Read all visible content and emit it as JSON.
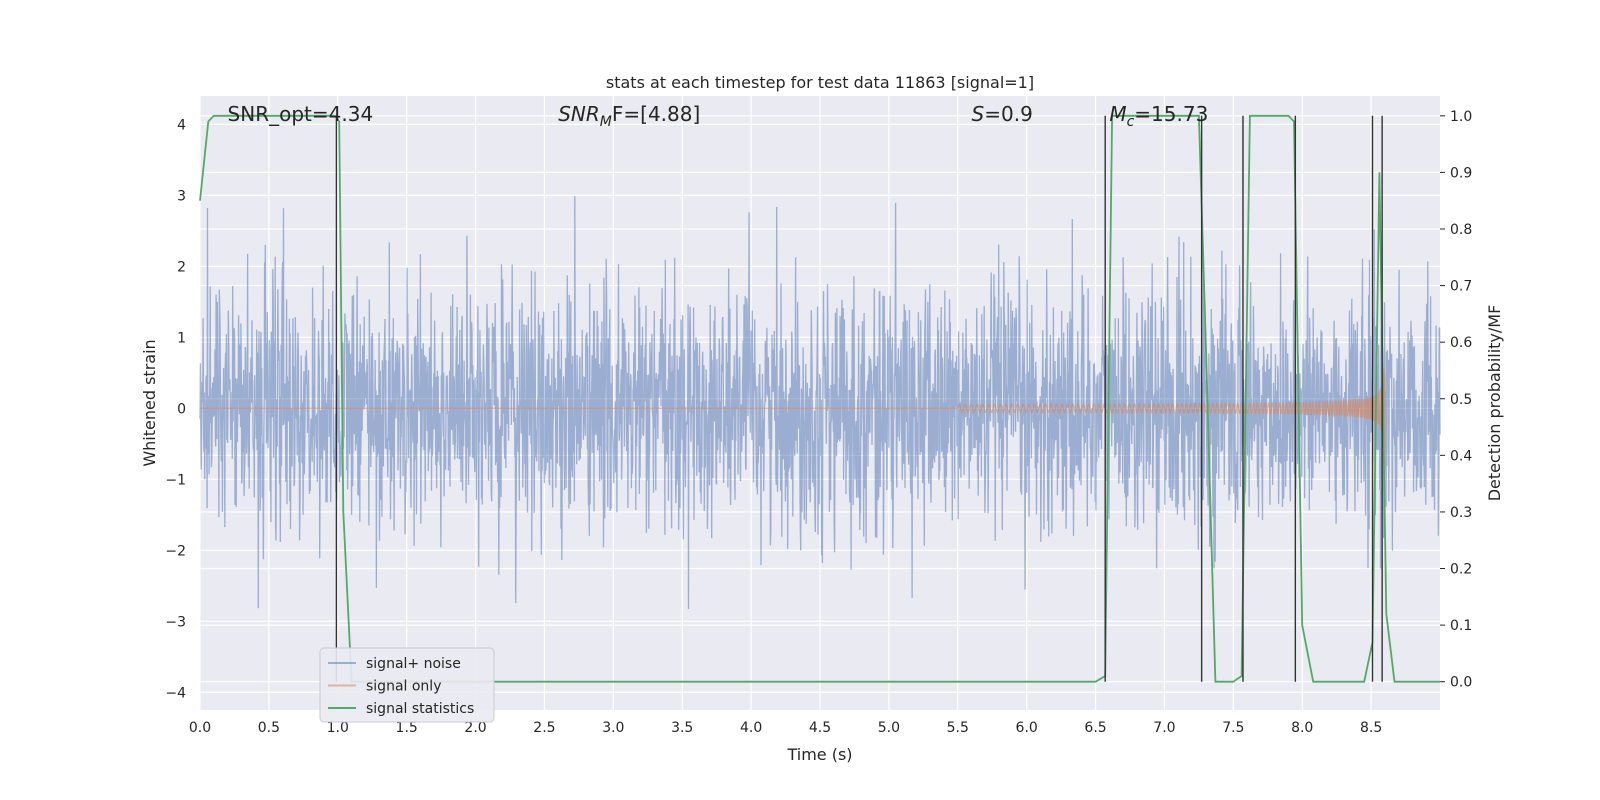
{
  "chart_data": {
    "type": "line",
    "title": "stats at each timestep for test data 11863 [signal=1]",
    "xlabel": "Time (s)",
    "ylabel": "Whitened strain",
    "ylabel_right": "Detection probability/MF",
    "xlim": [
      0.0,
      9.0
    ],
    "ylim": [
      -4.25,
      4.4
    ],
    "ylim_right": [
      -0.05,
      1.035
    ],
    "x_ticks": [
      "0.0",
      "0.5",
      "1.0",
      "1.5",
      "2.0",
      "2.5",
      "3.0",
      "3.5",
      "4.0",
      "4.5",
      "5.0",
      "5.5",
      "6.0",
      "6.5",
      "7.0",
      "7.5",
      "8.0",
      "8.5"
    ],
    "x_tick_values": [
      0.0,
      0.5,
      1.0,
      1.5,
      2.0,
      2.5,
      3.0,
      3.5,
      4.0,
      4.5,
      5.0,
      5.5,
      6.0,
      6.5,
      7.0,
      7.5,
      8.0,
      8.5
    ],
    "y_ticks": [
      "4",
      "3",
      "2",
      "1",
      "0",
      "−1",
      "−2",
      "−3",
      "−4"
    ],
    "y_tick_values": [
      4,
      3,
      2,
      1,
      0,
      -1,
      -2,
      -3,
      -4
    ],
    "y_ticks_right": [
      "1.0",
      "0.9",
      "0.8",
      "0.7",
      "0.6",
      "0.5",
      "0.4",
      "0.3",
      "0.2",
      "0.1",
      "0.0"
    ],
    "y_tick_values_right": [
      1.0,
      0.9,
      0.8,
      0.7,
      0.6,
      0.5,
      0.4,
      0.3,
      0.2,
      0.1,
      0.0
    ],
    "grid": true,
    "legend_position": "bottom-left",
    "annotations": [
      {
        "prefix": "SNR_opt=4.34",
        "sub": "",
        "suffix": "",
        "italic": false,
        "x": 0.2
      },
      {
        "prefix": "SNR",
        "sub": "M",
        "suffix": "F=[4.88]",
        "italic": true,
        "x": 2.6
      },
      {
        "prefix": "S",
        "sub": "",
        "suffix": "=0.9",
        "italic": true,
        "x": 5.6
      },
      {
        "prefix": "M",
        "sub": "c",
        "suffix": "=15.73",
        "italic": true,
        "x": 6.6
      }
    ],
    "series": [
      {
        "name": "signal+ noise",
        "color": "#4c72b0",
        "opacity": 0.5,
        "axis": "left",
        "style": "noise",
        "sigma": 0.85,
        "samples_per_second": 350
      },
      {
        "name": "signal only",
        "color": "#dd8452",
        "opacity": 0.55,
        "axis": "left",
        "style": "chirp",
        "start": 5.5,
        "merger": 8.6,
        "peak_amplitude": 0.85
      },
      {
        "name": "signal statistics",
        "color": "#55a868",
        "axis": "right",
        "style": "line",
        "x": [
          0.0,
          0.06,
          0.1,
          0.15,
          0.98,
          1.01,
          1.04,
          1.1,
          1.2,
          6.5,
          6.57,
          6.62,
          6.7,
          7.25,
          7.3,
          7.37,
          7.5,
          7.56,
          7.62,
          7.7,
          7.9,
          7.94,
          8.0,
          8.08,
          8.45,
          8.51,
          8.56,
          8.61,
          8.67,
          9.0
        ],
        "y": [
          0.85,
          0.99,
          1.0,
          1.0,
          1.0,
          0.99,
          0.3,
          0.0,
          0.0,
          0.0,
          0.01,
          1.0,
          1.0,
          1.0,
          0.6,
          0.0,
          0.0,
          0.01,
          1.0,
          1.0,
          1.0,
          0.99,
          0.1,
          0.0,
          0.0,
          0.07,
          0.9,
          0.12,
          0.0,
          0.0
        ]
      }
    ],
    "vertical_lines": {
      "color": "#333333",
      "x": [
        0.99,
        6.57,
        7.27,
        7.57,
        7.95,
        8.51,
        8.58
      ]
    }
  }
}
